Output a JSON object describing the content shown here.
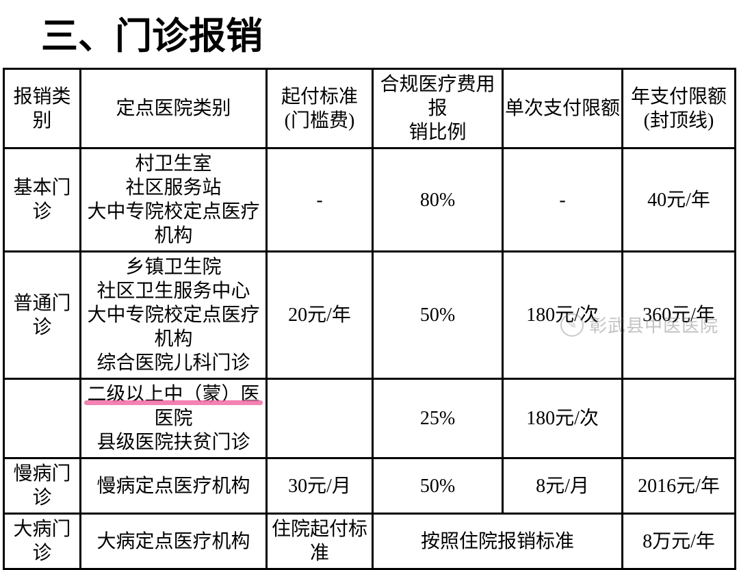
{
  "title": "三、门诊报销",
  "columns": [
    "报销类别",
    "定点医院类别",
    "起付标准\n(门槛费)",
    "合规医疗费用报\n销比例",
    "单次支付限额",
    "年支付限额\n(封顶线)"
  ],
  "rows": [
    {
      "category": "基本门诊",
      "hospital": "村卫生室\n社区服务站\n大中专院校定点医疗机构",
      "deductible": "-",
      "ratio": "80%",
      "per_limit": "-",
      "year_limit": "40元/年"
    },
    {
      "category": "普通门诊",
      "hospital": "乡镇卫生院\n社区卫生服务中心\n大中专院校定点医疗机构\n综合医院儿科门诊",
      "deductible": "20元/年",
      "ratio": "50%",
      "per_limit": "180元/次",
      "year_limit": "360元/年"
    },
    {
      "category": "",
      "hospital_line1": "二级以上中（蒙）医医院",
      "hospital_line2": "县级医院扶贫门诊",
      "deductible": "",
      "ratio": "25%",
      "per_limit": "180元/次",
      "year_limit": ""
    },
    {
      "category": "慢病门诊",
      "hospital": "慢病定点医疗机构",
      "deductible": "30元/月",
      "ratio": "50%",
      "per_limit": "8元/月",
      "year_limit": "2016元/年"
    },
    {
      "category": "大病门诊",
      "hospital": "大病定点医疗机构",
      "deductible": "住院起付标准",
      "merged": "按照住院报销标准",
      "year_limit": "8万元/年"
    }
  ],
  "watermark": "彰武县中医医院",
  "colors": {
    "border": "#000000",
    "text": "#000000",
    "highlight": "#f06da4",
    "watermark": "rgba(120,120,120,0.45)",
    "background": "#ffffff"
  }
}
